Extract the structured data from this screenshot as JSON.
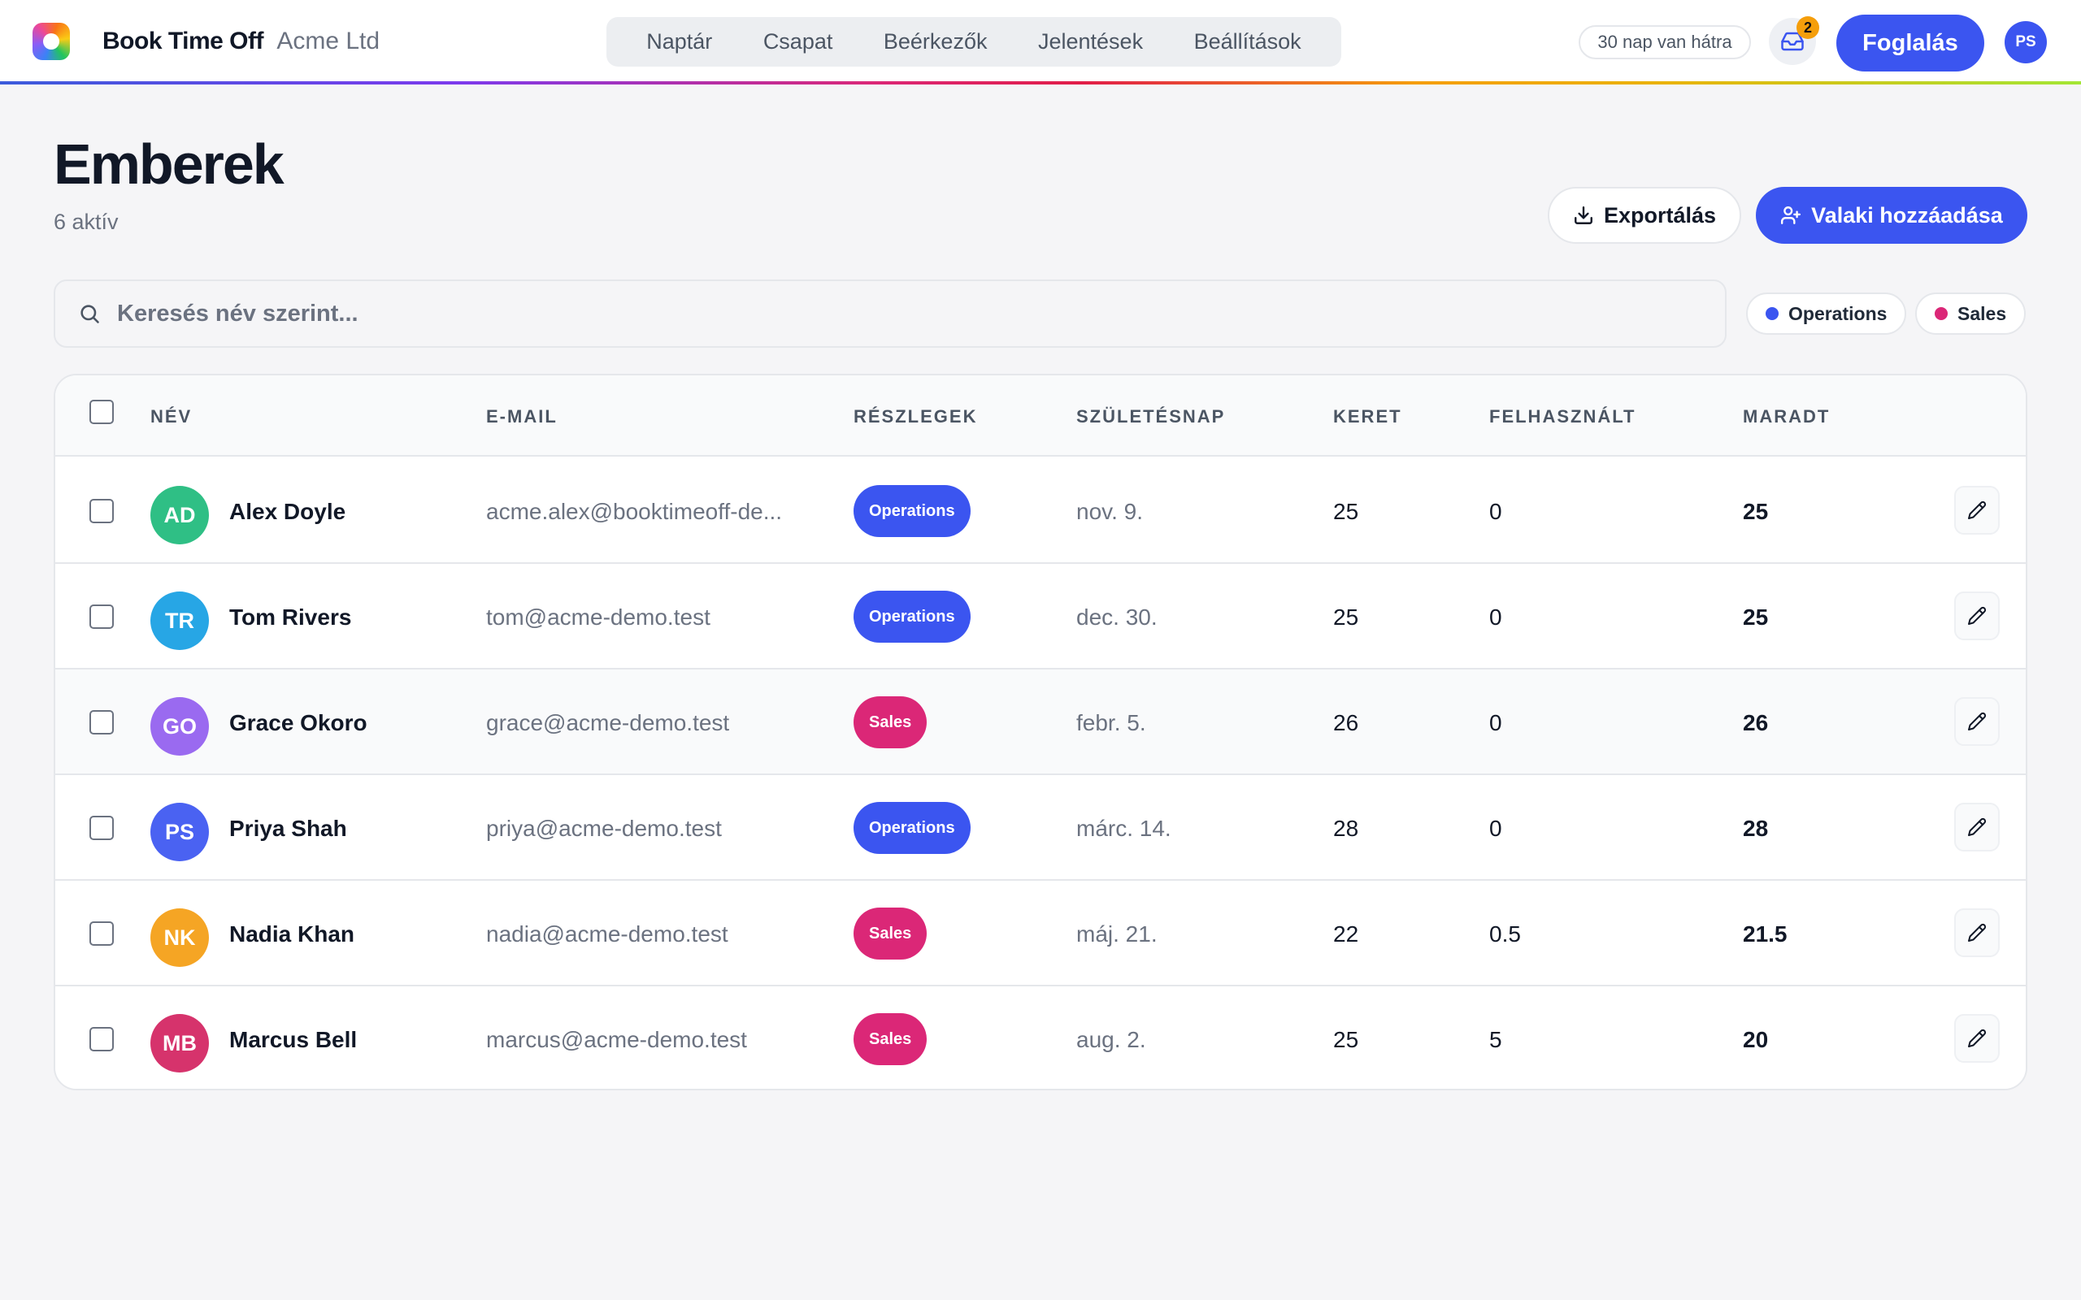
{
  "app": {
    "name": "Book Time Off",
    "org": "Acme Ltd"
  },
  "nav": {
    "items": [
      {
        "label": "Naptár"
      },
      {
        "label": "Csapat"
      },
      {
        "label": "Beérkezők"
      },
      {
        "label": "Jelentések"
      },
      {
        "label": "Beállítások"
      }
    ]
  },
  "header_actions": {
    "days_left": "30 nap van hátra",
    "inbox_icon": "inbox-icon",
    "inbox_count": "2",
    "book_label": "Foglalás",
    "user_initials": "PS"
  },
  "page": {
    "title": "Emberek",
    "subtitle": "6 aktív",
    "export_label": "Exportálás",
    "export_icon": "download-icon",
    "add_label": "Valaki hozzáadása",
    "add_icon": "user-plus-icon"
  },
  "search": {
    "placeholder": "Keresés név szerint...",
    "icon": "search-icon"
  },
  "filters": [
    {
      "label": "Operations",
      "color": "#3b55f0"
    },
    {
      "label": "Sales",
      "color": "#db2777"
    }
  ],
  "table": {
    "columns": [
      "NÉV",
      "E-MAIL",
      "RÉSZLEGEK",
      "SZÜLETÉSNAP",
      "KERET",
      "FELHASZNÁLT",
      "MARADT"
    ],
    "rows": [
      {
        "initials": "AD",
        "avatar_color": "#2fbf85",
        "name": "Alex Doyle",
        "email": "acme.alex@booktimeoff-de...",
        "department": "Operations",
        "department_color": "#3b55f0",
        "birthday": "nov. 9.",
        "quota": "25",
        "used": "0",
        "remaining": "25"
      },
      {
        "initials": "TR",
        "avatar_color": "#27a6e5",
        "name": "Tom Rivers",
        "email": "tom@acme-demo.test",
        "department": "Operations",
        "department_color": "#3b55f0",
        "birthday": "dec. 30.",
        "quota": "25",
        "used": "0",
        "remaining": "25"
      },
      {
        "initials": "GO",
        "avatar_color": "#9a6af0",
        "name": "Grace Okoro",
        "email": "grace@acme-demo.test",
        "department": "Sales",
        "department_color": "#db2777",
        "birthday": "febr. 5.",
        "quota": "26",
        "used": "0",
        "remaining": "26"
      },
      {
        "initials": "PS",
        "avatar_color": "#4a62f2",
        "name": "Priya Shah",
        "email": "priya@acme-demo.test",
        "department": "Operations",
        "department_color": "#3b55f0",
        "birthday": "márc. 14.",
        "quota": "28",
        "used": "0",
        "remaining": "28"
      },
      {
        "initials": "NK",
        "avatar_color": "#f5a524",
        "name": "Nadia Khan",
        "email": "nadia@acme-demo.test",
        "department": "Sales",
        "department_color": "#db2777",
        "birthday": "máj. 21.",
        "quota": "22",
        "used": "0.5",
        "remaining": "21.5"
      },
      {
        "initials": "MB",
        "avatar_color": "#d6336c",
        "name": "Marcus Bell",
        "email": "marcus@acme-demo.test",
        "department": "Sales",
        "department_color": "#db2777",
        "birthday": "aug. 2.",
        "quota": "25",
        "used": "5",
        "remaining": "20"
      }
    ],
    "edit_icon": "pencil-icon"
  }
}
